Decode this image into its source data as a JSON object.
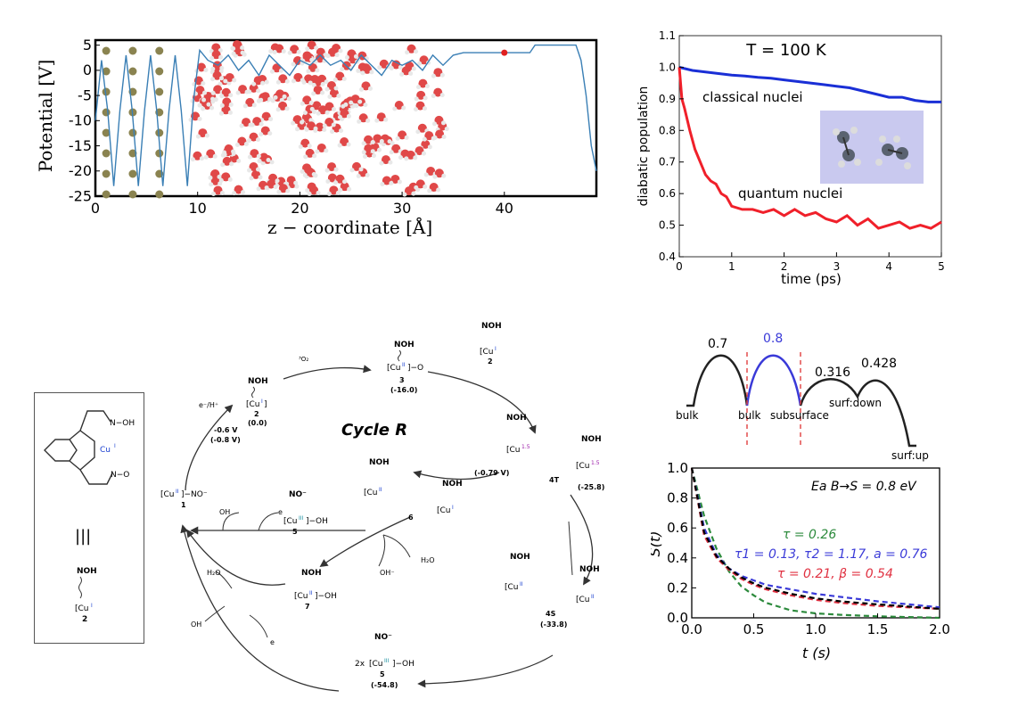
{
  "chart_data": [
    {
      "type": "line",
      "xlabel": "z − coordinate [Å]",
      "ylabel": "Potential [V]",
      "xlim": [
        0,
        49
      ],
      "ylim": [
        -25,
        6
      ],
      "xticks": [
        0,
        10,
        20,
        30,
        40
      ],
      "yticks": [
        5,
        0,
        -5,
        -10,
        -15,
        -20,
        -25
      ],
      "series": [
        {
          "color": "#3a7fb5",
          "x": [
            0,
            0.6,
            1.2,
            1.8,
            2.4,
            3.0,
            3.6,
            4.2,
            4.8,
            5.4,
            6.0,
            6.6,
            7.2,
            7.8,
            8.4,
            9.0,
            9.6,
            10.2,
            11,
            12,
            13,
            14,
            15,
            16,
            17,
            18,
            19,
            20,
            21,
            22,
            23,
            24,
            25,
            26,
            27,
            28,
            29,
            30,
            31,
            32,
            33,
            34,
            35,
            36,
            40,
            42.5,
            43,
            47,
            47.5,
            48,
            48.5,
            49
          ],
          "values": [
            -10,
            2,
            -8,
            -23,
            -8,
            3,
            -8,
            -23,
            -8,
            3,
            -8,
            -23,
            -8,
            3,
            -8,
            -23,
            -6,
            4,
            2,
            1,
            3,
            0,
            2,
            -1,
            3,
            1,
            -1,
            2,
            1,
            3,
            1,
            2,
            0,
            3,
            1,
            -1,
            2,
            1,
            2,
            0,
            3,
            1,
            3,
            3.5,
            3.5,
            3.5,
            5,
            5,
            2,
            -5,
            -15,
            -20
          ]
        }
      ],
      "marker_point": [
        40,
        3.5
      ]
    },
    {
      "type": "line",
      "title": "T = 100 K",
      "xlabel": "time (ps)",
      "ylabel": "diabatic population",
      "xlim": [
        0,
        5
      ],
      "ylim": [
        0.4,
        1.1
      ],
      "xticks": [
        0,
        1,
        2,
        3,
        4,
        5
      ],
      "yticks": [
        0.4,
        0.5,
        0.6,
        0.7,
        0.8,
        0.9,
        1.0,
        1.1
      ],
      "series": [
        {
          "name": "classical nuclei",
          "color": "#1a2fd6",
          "x": [
            0,
            0.25,
            0.5,
            0.75,
            1.0,
            1.25,
            1.5,
            1.75,
            2.0,
            2.25,
            2.5,
            2.75,
            3.0,
            3.25,
            3.5,
            3.75,
            4.0,
            4.25,
            4.5,
            4.75,
            5.0
          ],
          "values": [
            1.0,
            0.99,
            0.985,
            0.98,
            0.975,
            0.972,
            0.968,
            0.965,
            0.96,
            0.955,
            0.95,
            0.945,
            0.94,
            0.935,
            0.925,
            0.915,
            0.905,
            0.905,
            0.895,
            0.89,
            0.89
          ]
        },
        {
          "name": "quantum nuclei",
          "color": "#f0202a",
          "x": [
            0,
            0.05,
            0.1,
            0.2,
            0.3,
            0.4,
            0.5,
            0.6,
            0.7,
            0.8,
            0.9,
            1.0,
            1.2,
            1.4,
            1.6,
            1.8,
            2.0,
            2.2,
            2.4,
            2.6,
            2.8,
            3.0,
            3.2,
            3.4,
            3.6,
            3.8,
            4.0,
            4.2,
            4.4,
            4.6,
            4.8,
            5.0
          ],
          "values": [
            1.0,
            0.9,
            0.87,
            0.8,
            0.74,
            0.7,
            0.66,
            0.64,
            0.63,
            0.6,
            0.59,
            0.56,
            0.55,
            0.55,
            0.54,
            0.55,
            0.53,
            0.55,
            0.53,
            0.54,
            0.52,
            0.51,
            0.53,
            0.5,
            0.52,
            0.49,
            0.5,
            0.51,
            0.49,
            0.5,
            0.49,
            0.51
          ]
        }
      ]
    },
    {
      "type": "line",
      "ylabel": "S(t)",
      "xlabel": "t (s)",
      "annotation": "Ea B→S = 0.8 eV",
      "xlim": [
        0,
        2
      ],
      "ylim": [
        0,
        1
      ],
      "xticks": [
        0.0,
        0.5,
        1.0,
        1.5,
        2.0
      ],
      "yticks": [
        0.0,
        0.2,
        0.4,
        0.6,
        0.8,
        1.0
      ],
      "series": [
        {
          "name": "τ = 0.26",
          "color": "#2c8a3c",
          "x": [
            0,
            0.1,
            0.2,
            0.3,
            0.4,
            0.5,
            0.6,
            0.8,
            1.0,
            1.2,
            1.5,
            2.0
          ],
          "values": [
            1.0,
            0.68,
            0.46,
            0.31,
            0.21,
            0.15,
            0.1,
            0.05,
            0.03,
            0.02,
            0.01,
            0.0
          ]
        },
        {
          "name": "τ1 = 0.13, τ2 = 1.17, a = 0.76",
          "color": "#3b3bd8",
          "x": [
            0,
            0.1,
            0.2,
            0.3,
            0.4,
            0.5,
            0.6,
            0.8,
            1.0,
            1.2,
            1.5,
            2.0
          ],
          "values": [
            1.0,
            0.6,
            0.42,
            0.33,
            0.28,
            0.25,
            0.22,
            0.19,
            0.16,
            0.14,
            0.11,
            0.07
          ]
        },
        {
          "name": "τ = 0.21, β = 0.54",
          "color": "#e03040",
          "x": [
            0,
            0.1,
            0.2,
            0.3,
            0.4,
            0.5,
            0.6,
            0.8,
            1.0,
            1.2,
            1.5,
            2.0
          ],
          "values": [
            1.0,
            0.55,
            0.4,
            0.32,
            0.26,
            0.22,
            0.19,
            0.15,
            0.12,
            0.1,
            0.08,
            0.06
          ]
        },
        {
          "name": "",
          "color": "#000000",
          "x": [
            0,
            0.1,
            0.2,
            0.3,
            0.4,
            0.5,
            0.6,
            0.8,
            1.0,
            1.2,
            1.5,
            2.0
          ],
          "values": [
            1.0,
            0.57,
            0.41,
            0.33,
            0.27,
            0.23,
            0.2,
            0.16,
            0.13,
            0.11,
            0.09,
            0.06
          ]
        }
      ]
    },
    {
      "type": "diagram",
      "barrier_labels": [
        "0.7",
        "0.8",
        "0.316",
        "0.428"
      ],
      "site_labels": [
        "bulk",
        "bulk",
        "subsurface",
        "surf:down",
        "surf:up"
      ]
    }
  ],
  "scheme": {
    "title": "Cycle R",
    "species": {
      "c2_top": {
        "noh": "NOH",
        "cu": "[Cu",
        "ox": "I",
        "tail": "]",
        "num": "2",
        "e": "(0.0)"
      },
      "c3": {
        "noh": "NOH",
        "core": "[Cu",
        "ox": "II",
        "tail": "]−O",
        "num": "3",
        "e": "(-16.0)"
      },
      "o2": {
        "label": "³O₂"
      },
      "c2_right": {
        "noh": "NOH",
        "cu": "[Cu",
        "ox": "I",
        "tail": "]",
        "num": "2"
      },
      "c4T": {
        "noh1": "NOH",
        "noh2": "NOH",
        "cu1": "[Cu",
        "ox1": "1.5",
        "cu2": "[Cu",
        "ox2": "1.5",
        "num": "4T",
        "e": "(-25.8)",
        "redox": "(-0.79 V)"
      },
      "c6": {
        "noh1": "NOH",
        "noh2": "NOH",
        "cu1": "[Cu",
        "ox1": "II",
        "cu2": "[Cu",
        "ox2": "I",
        "num": "6"
      },
      "c4S": {
        "noh1": "NOH",
        "noh2": "NOH",
        "cu1": "[Cu",
        "ox1": "II",
        "cu2": "[Cu",
        "ox2": "II",
        "num": "4S",
        "e": "(-33.8)"
      },
      "c5_mid": {
        "no": "NO⁻",
        "cu": "[Cu",
        "ox": "III",
        "tail": "]−OH",
        "num": "5"
      },
      "c7": {
        "noh": "NOH",
        "cu": "[Cu",
        "ox": "II",
        "tail": "]−OH",
        "num": "7"
      },
      "c5_bottom": {
        "no": "NO⁻",
        "pre": "2x",
        "cu": "[Cu",
        "ox": "III",
        "tail": "]−OH",
        "num": "5",
        "e": "(-54.8)"
      },
      "c1": {
        "label": "[Cu",
        "ox": "II",
        "tail": "]−NO⁻",
        "num": "1"
      },
      "left_arrow": {
        "v1": "-0.6 V",
        "v2": "(-0.8 V)",
        "top": "e⁻/H⁺"
      },
      "side": {
        "oh1": "OH",
        "e1": "e",
        "h2o": "H₂O",
        "ohm": "OH⁻",
        "oh2": "OH",
        "h2o2": "H₂O",
        "oh3": "OH",
        "e2": "e"
      }
    },
    "inset": {
      "cu": "Cu",
      "cu_ox": "I",
      "noh_label": "N−OH",
      "no_label": "N−O",
      "equiv": "|||",
      "noh": "NOH",
      "cu2": "[Cu",
      "cu2_ox": "I",
      "num": "2"
    }
  }
}
